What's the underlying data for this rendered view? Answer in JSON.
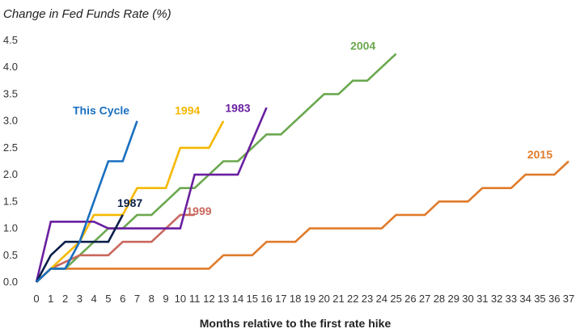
{
  "chart_data": {
    "type": "line",
    "title": "",
    "ylabel": "Change in Fed Funds Rate (%)",
    "xlabel": "Months relative to the first rate hike",
    "xlim": [
      0,
      37
    ],
    "ylim": [
      0,
      4.5
    ],
    "x_ticks": [
      0,
      1,
      2,
      3,
      4,
      5,
      6,
      7,
      8,
      9,
      10,
      11,
      12,
      13,
      14,
      15,
      16,
      17,
      18,
      19,
      20,
      21,
      22,
      23,
      24,
      25,
      26,
      27,
      28,
      29,
      30,
      31,
      32,
      33,
      34,
      35,
      36,
      37
    ],
    "y_ticks": [
      "0.0",
      "0.5",
      "1.0",
      "1.5",
      "2.0",
      "2.5",
      "3.0",
      "3.5",
      "4.0",
      "4.5"
    ],
    "grid": false,
    "series": [
      {
        "name": "2015",
        "color": "#E07B2A",
        "points": [
          [
            0,
            0
          ],
          [
            1,
            0.25
          ],
          [
            12,
            0.25
          ],
          [
            13,
            0.5
          ],
          [
            15,
            0.5
          ],
          [
            16,
            0.75
          ],
          [
            18,
            0.75
          ],
          [
            19,
            1.0
          ],
          [
            24,
            1.0
          ],
          [
            25,
            1.25
          ],
          [
            27,
            1.25
          ],
          [
            28,
            1.5
          ],
          [
            30,
            1.5
          ],
          [
            31,
            1.75
          ],
          [
            33,
            1.75
          ],
          [
            34,
            2.0
          ],
          [
            36,
            2.0
          ],
          [
            37,
            2.25
          ]
        ]
      },
      {
        "name": "2004",
        "color": "#6AA84F",
        "points": [
          [
            0,
            0
          ],
          [
            1,
            0.25
          ],
          [
            2,
            0.25
          ],
          [
            3,
            0.5
          ],
          [
            4,
            0.75
          ],
          [
            5,
            1.0
          ],
          [
            6,
            1.0
          ],
          [
            7,
            1.25
          ],
          [
            8,
            1.25
          ],
          [
            9,
            1.5
          ],
          [
            10,
            1.75
          ],
          [
            11,
            1.75
          ],
          [
            12,
            2.0
          ],
          [
            13,
            2.25
          ],
          [
            14,
            2.25
          ],
          [
            15,
            2.5
          ],
          [
            16,
            2.75
          ],
          [
            17,
            2.75
          ],
          [
            18,
            3.0
          ],
          [
            19,
            3.25
          ],
          [
            20,
            3.5
          ],
          [
            21,
            3.5
          ],
          [
            22,
            3.75
          ],
          [
            23,
            3.75
          ],
          [
            24,
            4.0
          ],
          [
            25,
            4.25
          ]
        ]
      },
      {
        "name": "1999",
        "color": "#C9685E",
        "points": [
          [
            0,
            0
          ],
          [
            1,
            0.25
          ],
          [
            3,
            0.5
          ],
          [
            4,
            0.5
          ],
          [
            5,
            0.5
          ],
          [
            6,
            0.75
          ],
          [
            7,
            0.75
          ],
          [
            8,
            0.75
          ],
          [
            9,
            1.0
          ],
          [
            10,
            1.25
          ],
          [
            11,
            1.25
          ]
        ]
      },
      {
        "name": "1994",
        "color": "#F5B800",
        "points": [
          [
            0,
            0
          ],
          [
            1,
            0.25
          ],
          [
            2,
            0.5
          ],
          [
            3,
            0.75
          ],
          [
            4,
            1.25
          ],
          [
            6,
            1.25
          ],
          [
            7,
            1.75
          ],
          [
            9,
            1.75
          ],
          [
            10,
            2.5
          ],
          [
            12,
            2.5
          ],
          [
            13,
            3.0
          ]
        ]
      },
      {
        "name": "1983",
        "color": "#6A1FA0",
        "points": [
          [
            0,
            0
          ],
          [
            1,
            1.125
          ],
          [
            4,
            1.125
          ],
          [
            5,
            1.0
          ],
          [
            10,
            1.0
          ],
          [
            11,
            2.0
          ],
          [
            14,
            2.0
          ],
          [
            16,
            3.25
          ]
        ]
      },
      {
        "name": "1987",
        "color": "#0B1F4B",
        "points": [
          [
            0,
            0
          ],
          [
            1,
            0.5
          ],
          [
            2,
            0.75
          ],
          [
            3,
            0.75
          ],
          [
            5,
            0.75
          ],
          [
            6,
            1.25
          ]
        ]
      },
      {
        "name": "This Cycle",
        "color": "#1A6FBF",
        "points": [
          [
            0,
            0
          ],
          [
            1,
            0.25
          ],
          [
            2,
            0.25
          ],
          [
            3,
            0.75
          ],
          [
            4,
            1.5
          ],
          [
            5,
            2.25
          ],
          [
            6,
            2.25
          ],
          [
            7,
            3.0
          ]
        ]
      }
    ],
    "labels": [
      {
        "text": "This Cycle",
        "x": 4.5,
        "y": 3.125,
        "color": "#1A6FBF"
      },
      {
        "text": "1994",
        "x": 10.5,
        "y": 3.125,
        "color": "#F5B800"
      },
      {
        "text": "1983",
        "x": 14,
        "y": 3.17,
        "color": "#6A1FA0"
      },
      {
        "text": "2004",
        "x": 22.7,
        "y": 4.33,
        "color": "#6AA84F"
      },
      {
        "text": "2015",
        "x": 35,
        "y": 2.3,
        "color": "#E07B2A"
      },
      {
        "text": "1987",
        "x": 6.5,
        "y": 1.4,
        "color": "#0B1F4B"
      },
      {
        "text": "1999",
        "x": 11.3,
        "y": 1.25,
        "color": "#C9685E"
      }
    ]
  }
}
